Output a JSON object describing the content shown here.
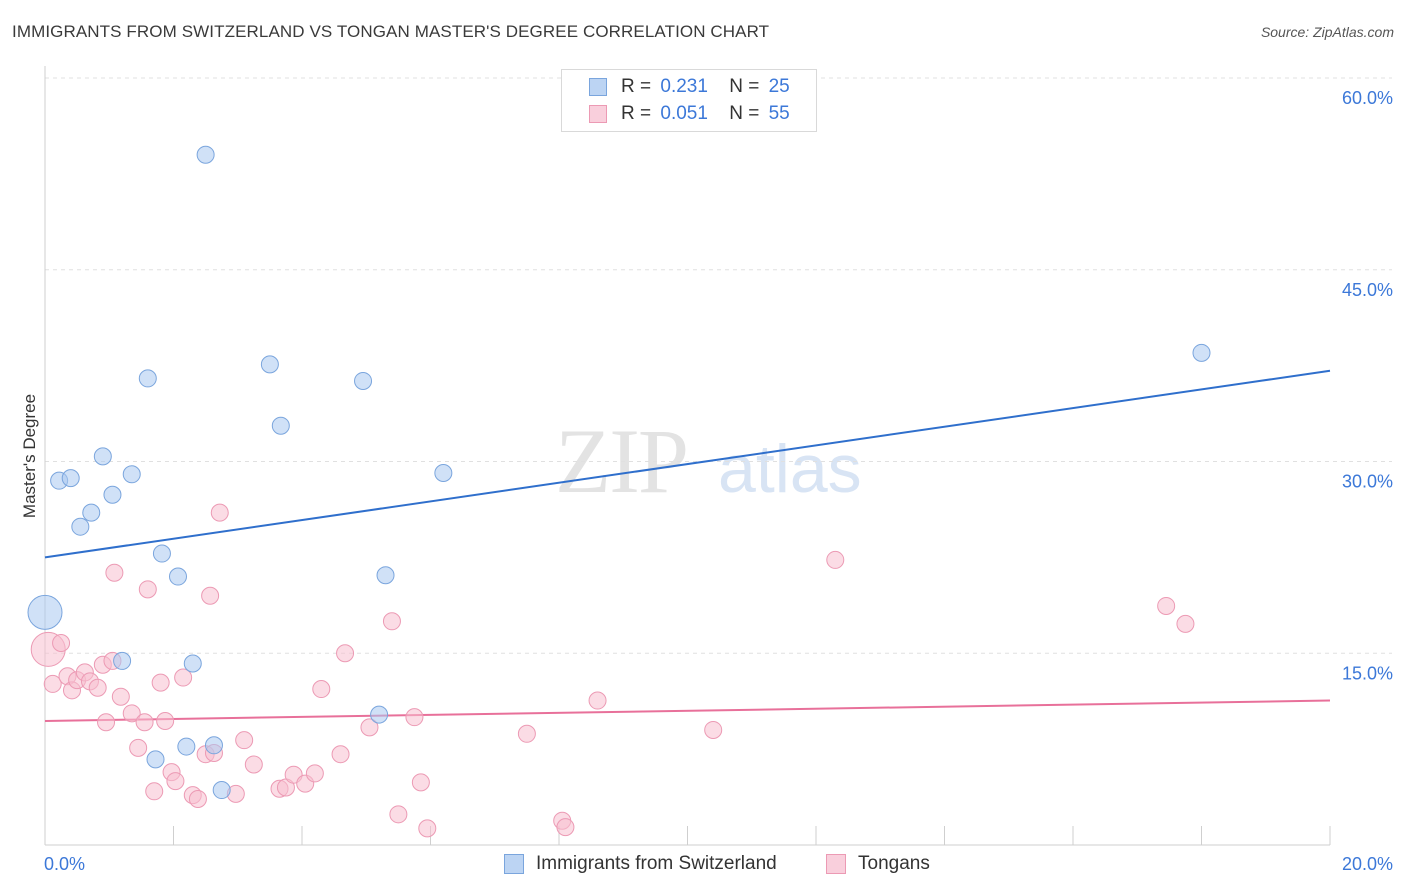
{
  "title": "IMMIGRANTS FROM SWITZERLAND VS TONGAN MASTER'S DEGREE CORRELATION CHART",
  "source": "Source: ZipAtlas.com",
  "watermark": {
    "zip": "ZIP",
    "atlas": "atlas"
  },
  "legend": {
    "r_label": "R =",
    "n_label": "N =",
    "rows": [
      {
        "r": "0.231",
        "n": "25"
      },
      {
        "r": "0.051",
        "n": "55"
      }
    ]
  },
  "colors": {
    "blue_fill": "#a9c8f0",
    "blue_stroke": "#7aa5dd",
    "blue_line": "#2f6fcc",
    "pink_fill": "#f7bfd0",
    "pink_stroke": "#ec9ab4",
    "pink_line": "#e8709a",
    "tick_label": "#3c78d8",
    "grid": "#e0e0e0"
  },
  "chart_data": {
    "type": "scatter",
    "title": "IMMIGRANTS FROM SWITZERLAND VS TONGAN MASTER'S DEGREE CORRELATION CHART",
    "xlabel": "",
    "ylabel": "Master's Degree",
    "xlim": [
      0,
      20
    ],
    "ylim": [
      0,
      60
    ],
    "x_tick_labels": [
      {
        "value": 0,
        "label": "0.0%"
      },
      {
        "value": 20,
        "label": "20.0%"
      }
    ],
    "y_tick_labels": [
      {
        "value": 15,
        "label": "15.0%"
      },
      {
        "value": 30,
        "label": "30.0%"
      },
      {
        "value": 45,
        "label": "45.0%"
      },
      {
        "value": 60,
        "label": "60.0%"
      }
    ],
    "x_minor_ticks": [
      0,
      2,
      4,
      6,
      8,
      10,
      12,
      14,
      16,
      18,
      20
    ],
    "series": [
      {
        "name": "Immigrants from Switzerland",
        "color": "blue",
        "trend": {
          "x": [
            0,
            20
          ],
          "y": [
            22.5,
            37.1
          ]
        },
        "points": [
          {
            "x": 0.0,
            "y": 18.2,
            "big": true
          },
          {
            "x": 0.22,
            "y": 28.5
          },
          {
            "x": 0.4,
            "y": 28.7
          },
          {
            "x": 0.55,
            "y": 24.9
          },
          {
            "x": 0.72,
            "y": 26.0
          },
          {
            "x": 0.9,
            "y": 30.4
          },
          {
            "x": 1.05,
            "y": 27.4
          },
          {
            "x": 1.35,
            "y": 29.0
          },
          {
            "x": 1.6,
            "y": 36.5
          },
          {
            "x": 1.82,
            "y": 22.8
          },
          {
            "x": 2.07,
            "y": 21.0
          },
          {
            "x": 2.3,
            "y": 14.2
          },
          {
            "x": 2.5,
            "y": 54.0
          },
          {
            "x": 3.5,
            "y": 37.6
          },
          {
            "x": 3.67,
            "y": 32.8
          },
          {
            "x": 4.95,
            "y": 36.3
          },
          {
            "x": 5.2,
            "y": 10.2
          },
          {
            "x": 5.3,
            "y": 21.1
          },
          {
            "x": 6.2,
            "y": 29.1
          },
          {
            "x": 1.2,
            "y": 14.4
          },
          {
            "x": 2.2,
            "y": 7.7
          },
          {
            "x": 2.63,
            "y": 7.8
          },
          {
            "x": 2.75,
            "y": 4.3
          },
          {
            "x": 1.72,
            "y": 6.7
          },
          {
            "x": 18.0,
            "y": 38.5
          }
        ]
      },
      {
        "name": "Tongans",
        "color": "pink",
        "trend": {
          "x": [
            0,
            20
          ],
          "y": [
            9.7,
            11.3
          ]
        },
        "points": [
          {
            "x": 0.05,
            "y": 15.3,
            "big": true
          },
          {
            "x": 0.12,
            "y": 12.6
          },
          {
            "x": 0.25,
            "y": 15.8
          },
          {
            "x": 0.35,
            "y": 13.2
          },
          {
            "x": 0.42,
            "y": 12.1
          },
          {
            "x": 0.5,
            "y": 12.9
          },
          {
            "x": 0.62,
            "y": 13.5
          },
          {
            "x": 0.7,
            "y": 12.8
          },
          {
            "x": 0.82,
            "y": 12.3
          },
          {
            "x": 0.9,
            "y": 14.1
          },
          {
            "x": 0.95,
            "y": 9.6
          },
          {
            "x": 1.05,
            "y": 14.4
          },
          {
            "x": 1.08,
            "y": 21.3
          },
          {
            "x": 1.18,
            "y": 11.6
          },
          {
            "x": 1.35,
            "y": 10.3
          },
          {
            "x": 1.45,
            "y": 7.6
          },
          {
            "x": 1.55,
            "y": 9.6
          },
          {
            "x": 1.6,
            "y": 20.0
          },
          {
            "x": 1.7,
            "y": 4.2
          },
          {
            "x": 1.8,
            "y": 12.7
          },
          {
            "x": 1.87,
            "y": 9.7
          },
          {
            "x": 1.97,
            "y": 5.7
          },
          {
            "x": 2.03,
            "y": 5.0
          },
          {
            "x": 2.15,
            "y": 13.1
          },
          {
            "x": 2.3,
            "y": 3.9
          },
          {
            "x": 2.38,
            "y": 3.6
          },
          {
            "x": 2.5,
            "y": 7.1
          },
          {
            "x": 2.57,
            "y": 19.5
          },
          {
            "x": 2.63,
            "y": 7.2
          },
          {
            "x": 2.72,
            "y": 26.0
          },
          {
            "x": 2.97,
            "y": 4.0
          },
          {
            "x": 3.1,
            "y": 8.2
          },
          {
            "x": 3.25,
            "y": 6.3
          },
          {
            "x": 3.65,
            "y": 4.4
          },
          {
            "x": 3.75,
            "y": 4.5
          },
          {
            "x": 3.87,
            "y": 5.5
          },
          {
            "x": 4.05,
            "y": 4.8
          },
          {
            "x": 4.2,
            "y": 5.6
          },
          {
            "x": 4.3,
            "y": 12.2
          },
          {
            "x": 4.6,
            "y": 7.1
          },
          {
            "x": 4.67,
            "y": 15.0
          },
          {
            "x": 5.05,
            "y": 9.2
          },
          {
            "x": 5.4,
            "y": 17.5
          },
          {
            "x": 5.5,
            "y": 2.4
          },
          {
            "x": 5.75,
            "y": 10.0
          },
          {
            "x": 5.85,
            "y": 4.9
          },
          {
            "x": 5.95,
            "y": 1.3
          },
          {
            "x": 7.5,
            "y": 8.7
          },
          {
            "x": 8.05,
            "y": 1.9
          },
          {
            "x": 8.1,
            "y": 1.4
          },
          {
            "x": 8.6,
            "y": 11.3
          },
          {
            "x": 10.4,
            "y": 9.0
          },
          {
            "x": 12.3,
            "y": 22.3
          },
          {
            "x": 17.45,
            "y": 18.7
          },
          {
            "x": 17.75,
            "y": 17.3
          }
        ]
      }
    ]
  }
}
